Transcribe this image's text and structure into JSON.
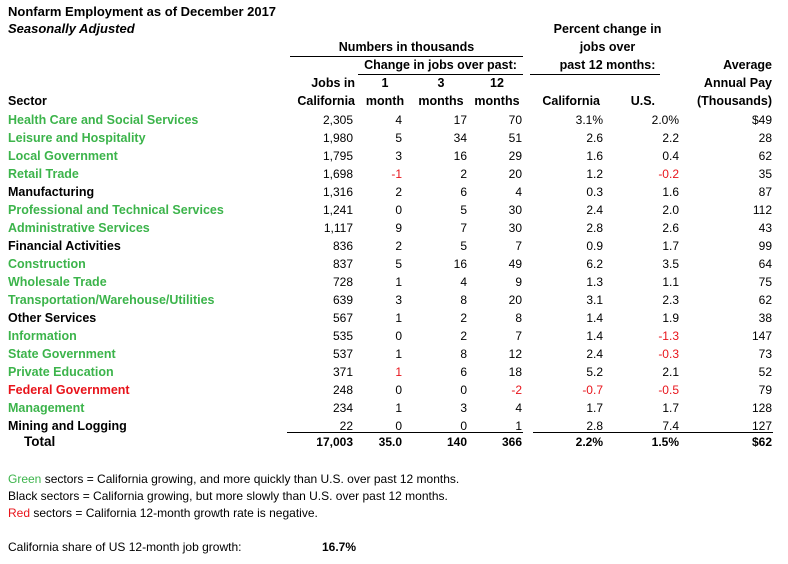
{
  "title": "Nonfarm Employment as of December 2017",
  "subtitle": "Seasonally Adjusted",
  "headers": {
    "numbers_thousands": "Numbers in thousands",
    "change_over_past": "Change in jobs over past:",
    "pct_change_l1": "Percent change in",
    "pct_change_l2": "jobs over",
    "pct_change_l3": "past 12 months:",
    "avg_l1": "Average",
    "avg_l2": "Annual Pay",
    "avg_l3": "(Thousands)",
    "jobs_l1": "Jobs in",
    "jobs_l2": "California",
    "m1_l1": "1",
    "m1_l2": "month",
    "m3_l1": "3",
    "m3_l2": "months",
    "m12_l1": "12",
    "m12_l2": "months",
    "sector": "Sector",
    "california": "California",
    "us": "U.S."
  },
  "colors": {
    "green": "#3cb44b",
    "red": "#e8141b",
    "black": "#000000"
  },
  "rows": [
    {
      "sector": "Health Care and Social Services",
      "color": "green",
      "jobs": "2,305",
      "m1": "4",
      "m3": "17",
      "m12": "70",
      "ca": "3.1%",
      "us": "2.0%",
      "pay": "$49",
      "m1_red": false,
      "m12_red": false,
      "ca_red": false,
      "us_red": false
    },
    {
      "sector": "Leisure and Hospitality",
      "color": "green",
      "jobs": "1,980",
      "m1": "5",
      "m3": "34",
      "m12": "51",
      "ca": "2.6",
      "us": "2.2",
      "pay": "28",
      "m1_red": false,
      "m12_red": false,
      "ca_red": false,
      "us_red": false
    },
    {
      "sector": "Local Government",
      "color": "green",
      "jobs": "1,795",
      "m1": "3",
      "m3": "16",
      "m12": "29",
      "ca": "1.6",
      "us": "0.4",
      "pay": "62",
      "m1_red": false,
      "m12_red": false,
      "ca_red": false,
      "us_red": false
    },
    {
      "sector": "Retail Trade",
      "color": "green",
      "jobs": "1,698",
      "m1": "-1",
      "m3": "2",
      "m12": "20",
      "ca": "1.2",
      "us": "-0.2",
      "pay": "35",
      "m1_red": true,
      "m12_red": false,
      "ca_red": false,
      "us_red": true
    },
    {
      "sector": "Manufacturing",
      "color": "black",
      "jobs": "1,316",
      "m1": "2",
      "m3": "6",
      "m12": "4",
      "ca": "0.3",
      "us": "1.6",
      "pay": "87",
      "m1_red": false,
      "m12_red": false,
      "ca_red": false,
      "us_red": false
    },
    {
      "sector": "Professional and Technical Services",
      "color": "green",
      "jobs": "1,241",
      "m1": "0",
      "m3": "5",
      "m12": "30",
      "ca": "2.4",
      "us": "2.0",
      "pay": "112",
      "m1_red": false,
      "m12_red": false,
      "ca_red": false,
      "us_red": false
    },
    {
      "sector": "Administrative Services",
      "color": "green",
      "jobs": "1,117",
      "m1": "9",
      "m3": "7",
      "m12": "30",
      "ca": "2.8",
      "us": "2.6",
      "pay": "43",
      "m1_red": false,
      "m12_red": false,
      "ca_red": false,
      "us_red": false
    },
    {
      "sector": "Financial Activities",
      "color": "black",
      "jobs": "836",
      "m1": "2",
      "m3": "5",
      "m12": "7",
      "ca": "0.9",
      "us": "1.7",
      "pay": "99",
      "m1_red": false,
      "m12_red": false,
      "ca_red": false,
      "us_red": false
    },
    {
      "sector": "Construction",
      "color": "green",
      "jobs": "837",
      "m1": "5",
      "m3": "16",
      "m12": "49",
      "ca": "6.2",
      "us": "3.5",
      "pay": "64",
      "m1_red": false,
      "m12_red": false,
      "ca_red": false,
      "us_red": false
    },
    {
      "sector": "Wholesale Trade",
      "color": "green",
      "jobs": "728",
      "m1": "1",
      "m3": "4",
      "m12": "9",
      "ca": "1.3",
      "us": "1.1",
      "pay": "75",
      "m1_red": false,
      "m12_red": false,
      "ca_red": false,
      "us_red": false
    },
    {
      "sector": "Transportation/Warehouse/Utilities",
      "color": "green",
      "jobs": "639",
      "m1": "3",
      "m3": "8",
      "m12": "20",
      "ca": "3.1",
      "us": "2.3",
      "pay": "62",
      "m1_red": false,
      "m12_red": false,
      "ca_red": false,
      "us_red": false
    },
    {
      "sector": "Other Services",
      "color": "black",
      "jobs": "567",
      "m1": "1",
      "m3": "2",
      "m12": "8",
      "ca": "1.4",
      "us": "1.9",
      "pay": "38",
      "m1_red": false,
      "m12_red": false,
      "ca_red": false,
      "us_red": false
    },
    {
      "sector": "Information",
      "color": "green",
      "jobs": "535",
      "m1": "0",
      "m3": "2",
      "m12": "7",
      "ca": "1.4",
      "us": "-1.3",
      "pay": "147",
      "m1_red": false,
      "m12_red": false,
      "ca_red": false,
      "us_red": true
    },
    {
      "sector": "State Government",
      "color": "green",
      "jobs": "537",
      "m1": "1",
      "m3": "8",
      "m12": "12",
      "ca": "2.4",
      "us": "-0.3",
      "pay": "73",
      "m1_red": false,
      "m12_red": false,
      "ca_red": false,
      "us_red": true
    },
    {
      "sector": "Private Education",
      "color": "green",
      "jobs": "371",
      "m1": "1",
      "m3": "6",
      "m12": "18",
      "ca": "5.2",
      "us": "2.1",
      "pay": "52",
      "m1_red": true,
      "m12_red": false,
      "ca_red": false,
      "us_red": false
    },
    {
      "sector": "Federal Government",
      "color": "red",
      "jobs": "248",
      "m1": "0",
      "m3": "0",
      "m12": "-2",
      "ca": "-0.7",
      "us": "-0.5",
      "pay": "79",
      "m1_red": false,
      "m12_red": true,
      "ca_red": true,
      "us_red": true
    },
    {
      "sector": "Management",
      "color": "green",
      "jobs": "234",
      "m1": "1",
      "m3": "3",
      "m12": "4",
      "ca": "1.7",
      "us": "1.7",
      "pay": "128",
      "m1_red": false,
      "m12_red": false,
      "ca_red": false,
      "us_red": false
    },
    {
      "sector": "Mining and Logging",
      "color": "black",
      "jobs": "22",
      "m1": "0",
      "m3": "0",
      "m12": "1",
      "ca": "2.8",
      "us": "7.4",
      "pay": "127",
      "m1_red": false,
      "m12_red": false,
      "ca_red": false,
      "us_red": false
    }
  ],
  "total": {
    "label": "Total",
    "jobs": "17,003",
    "m1": "35.0",
    "m3": "140",
    "m12": "366",
    "ca": "2.2%",
    "us": "1.5%",
    "pay": "$62"
  },
  "legend": {
    "green_word": "Green",
    "green_rest": " sectors = California growing, and more quickly than U.S. over past 12 months.",
    "black_word": "Black",
    "black_rest": " sectors = California growing, but more slowly than U.S. over past 12 months.",
    "red_word": "Red",
    "red_rest": " sectors = California 12-month growth rate is negative."
  },
  "share": {
    "label": "California share of US 12-month job growth:",
    "value": "16.7%"
  }
}
